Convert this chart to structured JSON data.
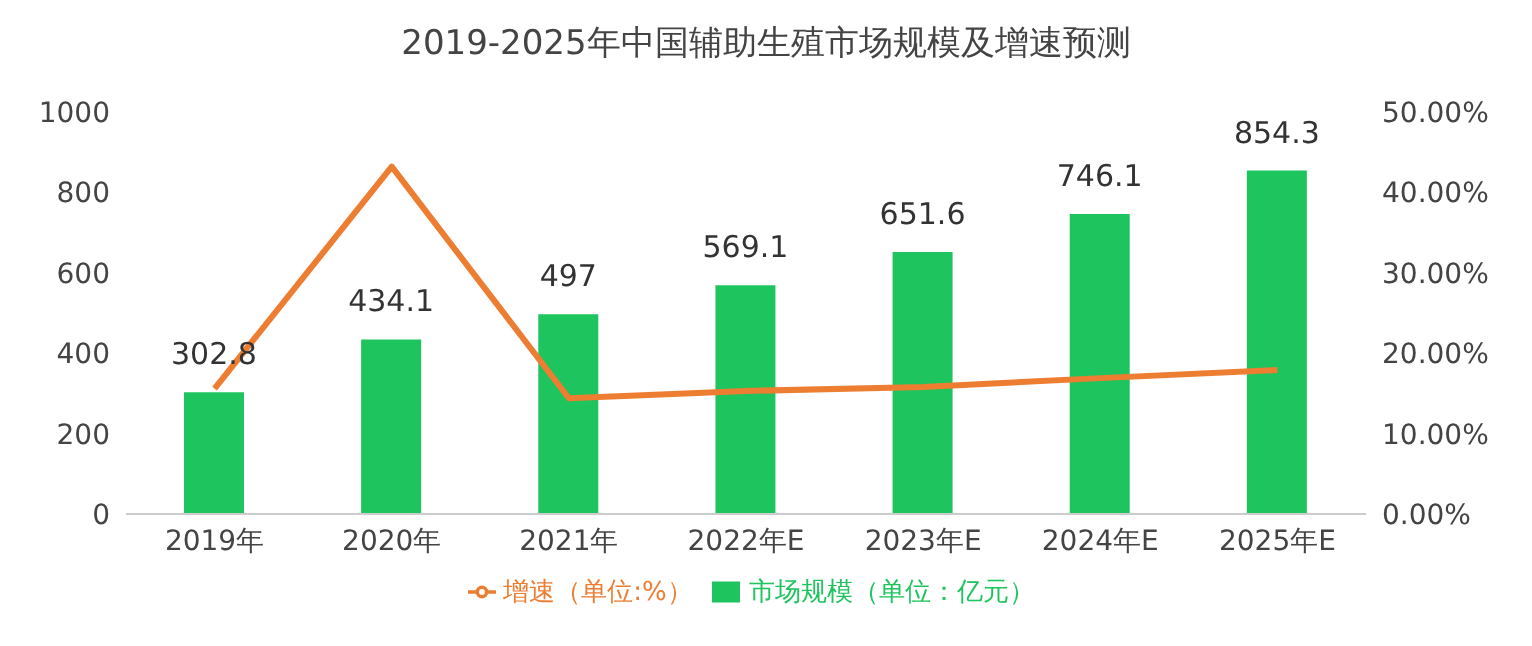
{
  "chart_data": {
    "type": "bar",
    "title": "2019-2025年中国辅助生殖市场规模及增速预测",
    "categories": [
      "2019年",
      "2020年",
      "2021年",
      "2022年E",
      "2023年E",
      "2024年E",
      "2025年E"
    ],
    "series": [
      {
        "name": "市场规模（单位：亿元）",
        "color": "#1ec45e",
        "values": [
          302.8,
          434.1,
          497,
          569.1,
          651.6,
          746.1,
          854.3
        ],
        "value_labels": [
          "302.8",
          "434.1",
          "497",
          "569.1",
          "651.6",
          "746.1",
          "854.3"
        ]
      },
      {
        "name": "增速（单位:%）",
        "type": "line",
        "axis": "y2",
        "color": "#ed7d31",
        "values": [
          15.6,
          43.2,
          14.4,
          15.3,
          15.8,
          16.9,
          17.9
        ]
      }
    ],
    "ylim": [
      0,
      1000
    ],
    "yticks": [
      0,
      200,
      400,
      600,
      800,
      1000
    ],
    "y2lim": [
      0,
      50
    ],
    "y2ticks": [
      {
        "value": 0,
        "label": "0.00%"
      },
      {
        "value": 10,
        "label": "10.00%"
      },
      {
        "value": 20,
        "label": "20.00%"
      },
      {
        "value": 30,
        "label": "30.00%"
      },
      {
        "value": 40,
        "label": "40.00%"
      },
      {
        "value": 50,
        "label": "50.00%"
      }
    ],
    "grid": false,
    "legend": "bottom",
    "marker": "none"
  }
}
